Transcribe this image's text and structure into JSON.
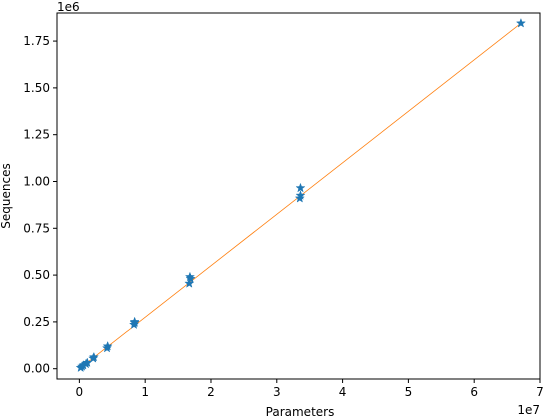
{
  "chart_data": {
    "type": "scatter",
    "xlabel": "Parameters",
    "ylabel": "Sequences",
    "x_offset_label": "1e7",
    "y_offset_label": "1e6",
    "x_scale": 10000000,
    "y_scale": 1000000,
    "xlim": [
      -0.34,
      7.0
    ],
    "ylim": [
      -0.055,
      1.9
    ],
    "x_ticks": [
      0,
      1,
      2,
      3,
      4,
      5,
      6,
      7
    ],
    "x_tick_labels": [
      "0",
      "1",
      "2",
      "3",
      "4",
      "5",
      "6",
      "7"
    ],
    "y_ticks": [
      0.0,
      0.25,
      0.5,
      0.75,
      1.0,
      1.25,
      1.5,
      1.75
    ],
    "y_tick_labels": [
      "0.00",
      "0.25",
      "0.50",
      "0.75",
      "1.00",
      "1.25",
      "1.50",
      "1.75"
    ],
    "grid": false,
    "series": [
      {
        "marker": "star",
        "color": "#1f77b4",
        "points": [
          {
            "x": 0.02,
            "y": 0.005
          },
          {
            "x": 0.04,
            "y": 0.012
          },
          {
            "x": 0.06,
            "y": 0.018
          },
          {
            "x": 0.1,
            "y": 0.025
          },
          {
            "x": 0.12,
            "y": 0.032
          },
          {
            "x": 0.21,
            "y": 0.055
          },
          {
            "x": 0.22,
            "y": 0.062
          },
          {
            "x": 0.42,
            "y": 0.11
          },
          {
            "x": 0.43,
            "y": 0.12
          },
          {
            "x": 0.83,
            "y": 0.235
          },
          {
            "x": 0.84,
            "y": 0.245
          },
          {
            "x": 0.84,
            "y": 0.25
          },
          {
            "x": 1.67,
            "y": 0.455
          },
          {
            "x": 1.68,
            "y": 0.49
          },
          {
            "x": 1.69,
            "y": 0.48
          },
          {
            "x": 3.35,
            "y": 0.91
          },
          {
            "x": 3.36,
            "y": 0.925
          },
          {
            "x": 3.36,
            "y": 0.965
          },
          {
            "x": 6.71,
            "y": 1.845
          }
        ]
      },
      {
        "type": "line",
        "color": "#ff7f0e",
        "points": [
          {
            "x": 0.0,
            "y": 0.0
          },
          {
            "x": 6.71,
            "y": 1.845
          }
        ]
      }
    ]
  }
}
